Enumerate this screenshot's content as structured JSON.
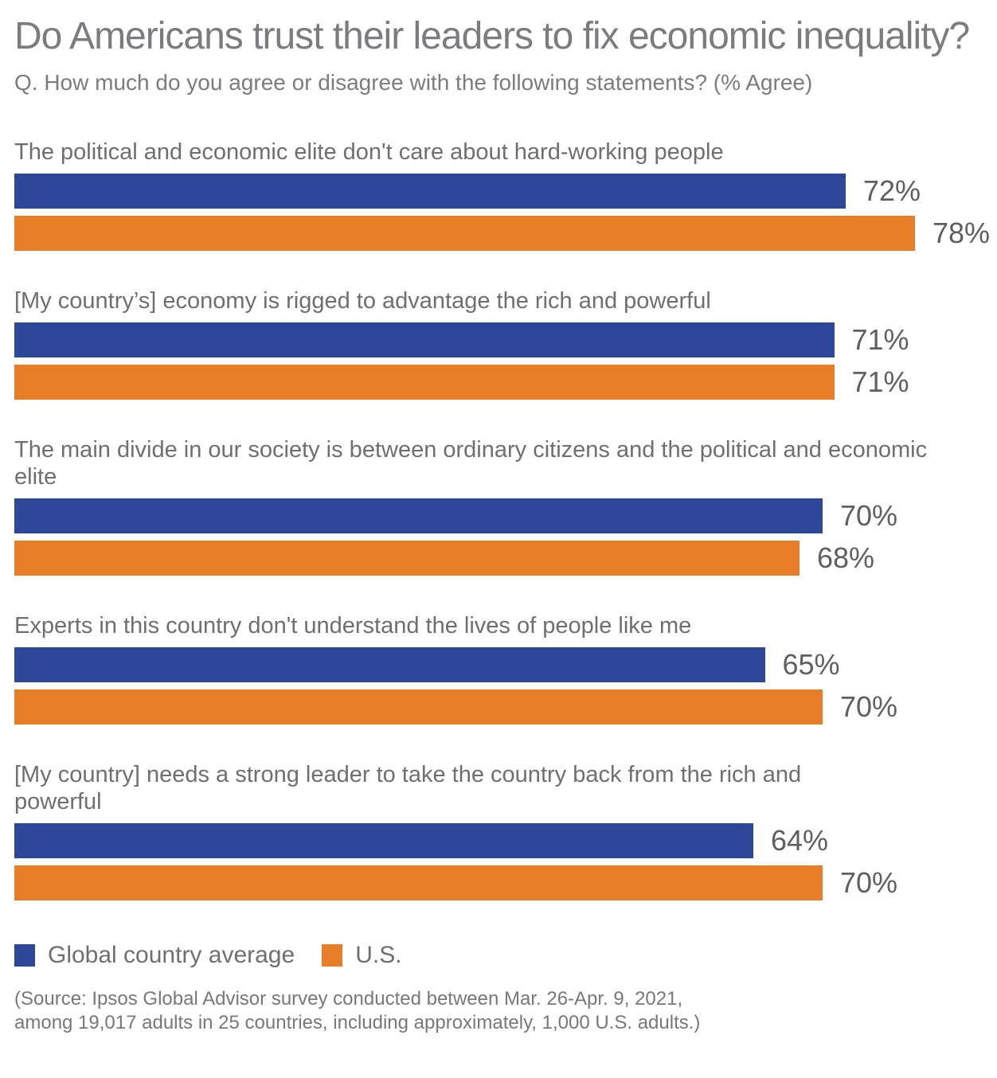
{
  "title": "Do Americans trust their leaders to fix economic inequality?",
  "subtitle": "Q. How much do you agree or disagree with the following statements? (% Agree)",
  "colors": {
    "global": "#2d4899",
    "us": "#e87d27"
  },
  "chart_data": {
    "type": "bar",
    "orientation": "horizontal",
    "title": "Do Americans trust their leaders to fix economic inequality?",
    "subtitle": "Q. How much do you agree or disagree with the following statements? (% Agree)",
    "value_unit": "%",
    "xlim": [
      0,
      85
    ],
    "grid": false,
    "legend_position": "bottom",
    "categories": [
      "The political and economic elite don't care about hard-working people",
      "[My country’s] economy is rigged to advantage the rich and powerful",
      "The main divide in our society is between ordinary citizens and the political and economic elite",
      "Experts in this country don't understand the lives of people like me",
      "[My country] needs a strong leader to take the country back from the rich and powerful"
    ],
    "series": [
      {
        "name": "Global country average",
        "color": "#2d4899",
        "values": [
          72,
          71,
          70,
          65,
          64
        ],
        "labels": [
          "72%",
          "71%",
          "70%",
          "65%",
          "64%"
        ]
      },
      {
        "name": "U.S.",
        "color": "#e87d27",
        "values": [
          78,
          71,
          68,
          70,
          70
        ],
        "labels": [
          "78%",
          "71%",
          "68%",
          "70%",
          "70%"
        ]
      }
    ]
  },
  "legend": {
    "items": [
      {
        "label": "Global country average",
        "color": "#2d4899"
      },
      {
        "label": "U.S.",
        "color": "#e87d27"
      }
    ]
  },
  "source": {
    "lines": [
      "(Source: Ipsos Global Advisor survey conducted between Mar. 26-Apr. 9, 2021,",
      "among 19,017 adults in 25 countries, including approximately, 1,000 U.S. adults.)"
    ]
  }
}
